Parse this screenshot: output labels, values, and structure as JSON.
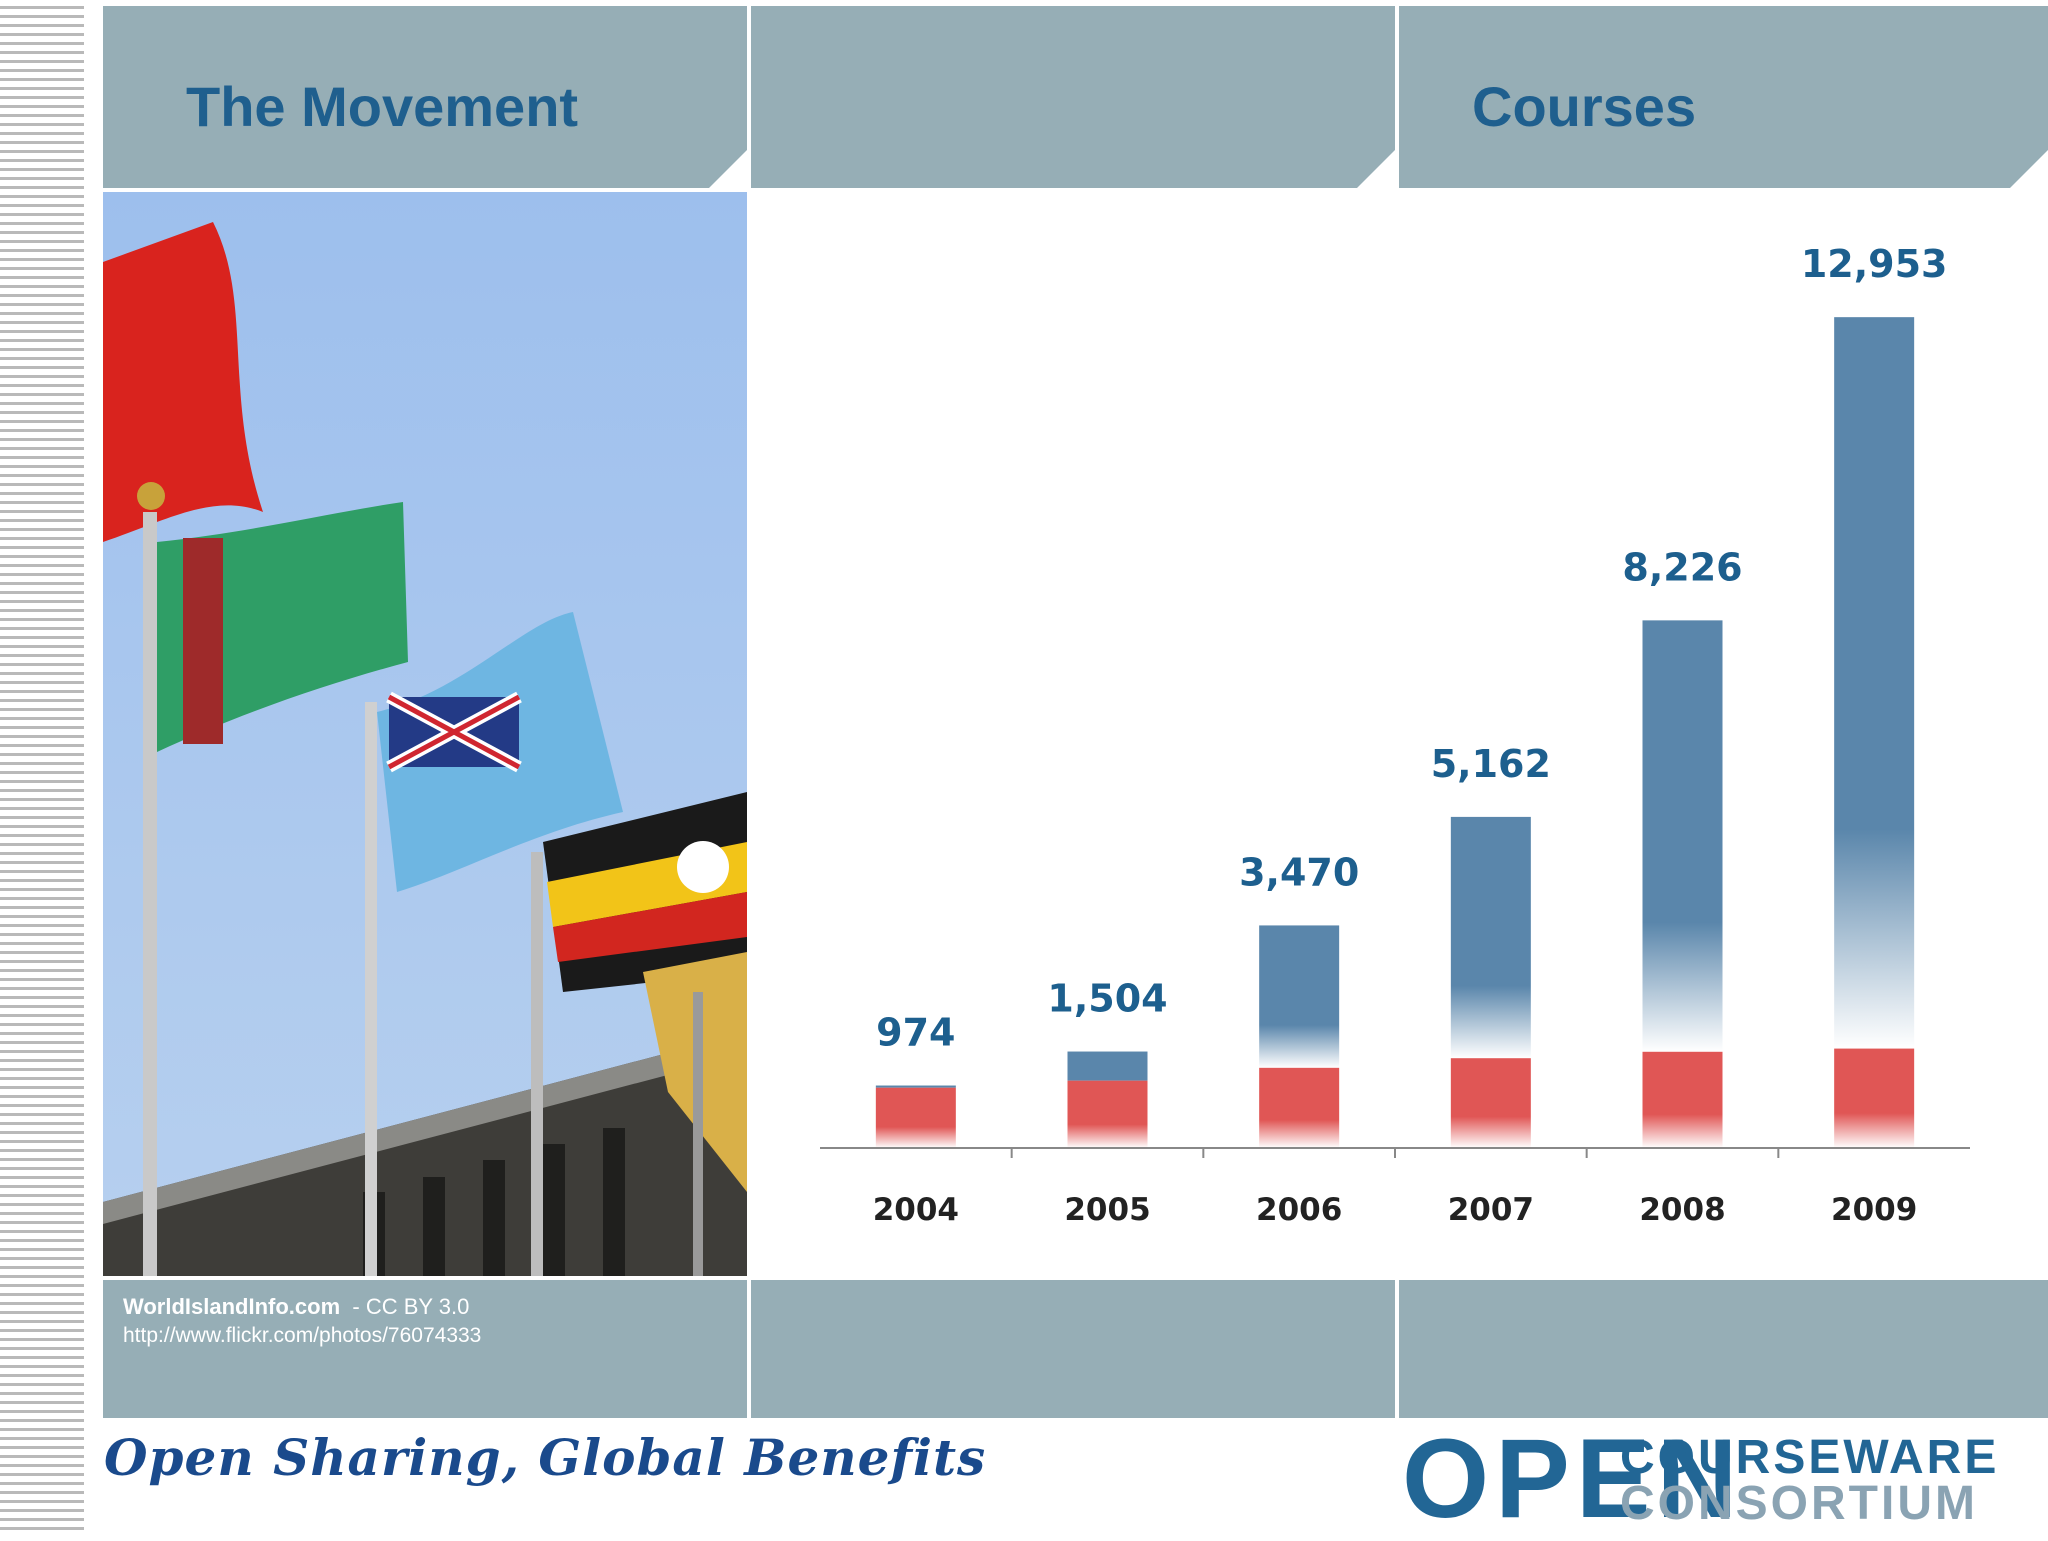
{
  "slide": {
    "title_left": "The Movement",
    "title_right": "Courses",
    "photo_credit_name": "WorldIslandInfo.com",
    "photo_credit_license": "- CC BY 3.0",
    "photo_credit_url": "http://www.flickr.com/photos/76074333",
    "tagline": "Open Sharing, Global Benefits",
    "logo": {
      "big": "OPEN",
      "line1": "COURSEWARE",
      "line2": "CONSORTIUM"
    }
  },
  "colors": {
    "panel": "#96aeb6",
    "title": "#1f5f8e",
    "bar_blue": "#5a86ab",
    "bar_red": "#e05655",
    "value_label": "#1d5f8e"
  },
  "chart_data": {
    "type": "bar",
    "title": "",
    "xlabel": "",
    "ylabel": "",
    "categories": [
      "2004",
      "2005",
      "2006",
      "2007",
      "2008",
      "2009"
    ],
    "series": [
      {
        "values": [
          974,
          1504,
          3470,
          5162,
          8226,
          12953
        ]
      }
    ],
    "data_labels": [
      "974",
      "1,504",
      "3,470",
      "5,162",
      "8,226",
      "12,953"
    ],
    "red_portion": [
      940,
      1050,
      1250,
      1400,
      1500,
      1550
    ],
    "ylim": [
      0,
      14000
    ],
    "grid": false,
    "legend": "none"
  }
}
